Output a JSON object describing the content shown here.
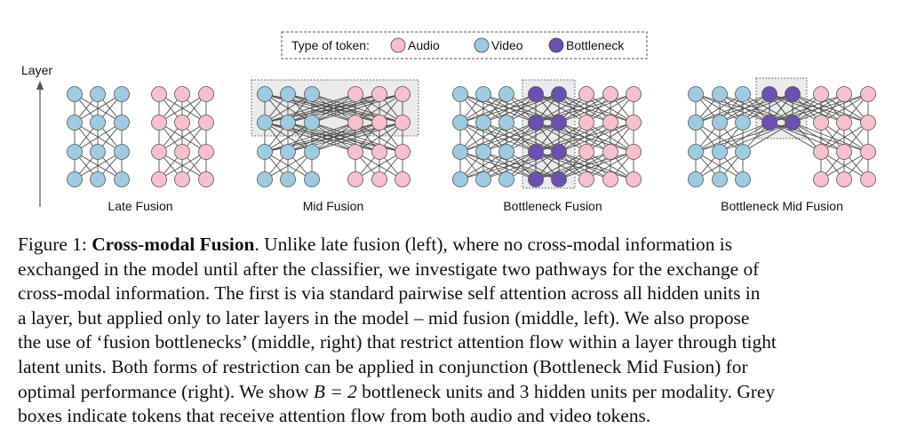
{
  "legend": {
    "title": "Type of token:",
    "items": [
      {
        "label": "Audio",
        "color": "#f6c0cd"
      },
      {
        "label": "Video",
        "color": "#9ecbe0"
      },
      {
        "label": "Bottleneck",
        "color": "#6b4fb1"
      }
    ]
  },
  "axis_label": "Layer",
  "panels": [
    {
      "label": "Late Fusion"
    },
    {
      "label": "Mid Fusion"
    },
    {
      "label": "Bottleneck Fusion"
    },
    {
      "label": "Bottleneck Mid Fusion"
    }
  ],
  "colors": {
    "audio": "#f6c0cd",
    "video": "#9ecbe0",
    "bottleneck": "#6b4fb1",
    "grey_box": "#ebebeb",
    "edge": "#4a4a4a"
  },
  "caption": {
    "line1_prefix": "Figure 1: ",
    "line1_bold": "Cross-modal Fusion",
    "line1_rest": ".  Unlike late fusion (left), where no cross-modal information is",
    "line2": "exchanged in the model until after the classifier, we investigate two pathways for the exchange of",
    "line3": "cross-modal information. The first is via standard pairwise self attention across all hidden units in",
    "line4": "a layer, but applied only to later layers in the model – mid fusion (middle, left). We also propose",
    "line5": "the use of ‘fusion bottlenecks’ (middle, right) that restrict attention flow within a layer through tight",
    "line6": "latent units.  Both forms of restriction can be applied in conjunction (Bottleneck Mid Fusion) for",
    "line7_pre": "optimal performance (right). We show ",
    "line7_math": "B = 2",
    "line7_post": " bottleneck units and 3 hidden units per modality. Grey",
    "line8": "boxes indicate tokens that receive attention flow from both audio and video tokens."
  }
}
